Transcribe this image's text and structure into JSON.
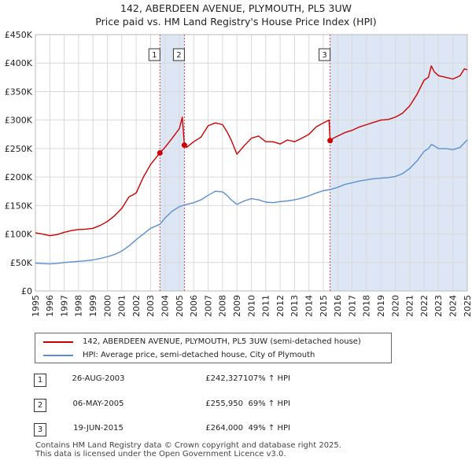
{
  "title_line1": "142, ABERDEEN AVENUE, PLYMOUTH, PL5 3UW",
  "title_line2": "Price paid vs. HM Land Registry's House Price Index (HPI)",
  "colors": {
    "property": "#cc0000",
    "hpi": "#5b8fd0",
    "shade": "#dde6f5",
    "vline": "#dd4444",
    "grid": "#d9d9d9"
  },
  "legend": {
    "property_label": "142, ABERDEEN AVENUE, PLYMOUTH, PL5 3UW (semi-detached house)",
    "hpi_label": "HPI: Average price, semi-detached house, City of Plymouth"
  },
  "transactions": [
    {
      "num": "1",
      "date": "26-AUG-2003",
      "price": "£242,327",
      "hpi": "107% ↑ HPI"
    },
    {
      "num": "2",
      "date": "06-MAY-2005",
      "price": "£255,950",
      "hpi": "69% ↑ HPI"
    },
    {
      "num": "3",
      "date": "19-JUN-2015",
      "price": "£264,000",
      "hpi": "49% ↑ HPI"
    }
  ],
  "footer_line1": "Contains HM Land Registry data © Crown copyright and database right 2025.",
  "footer_line2": "This data is licensed under the Open Government Licence v3.0.",
  "chart_data": {
    "type": "line",
    "title": "142, ABERDEEN AVENUE, PLYMOUTH, PL5 3UW",
    "xlim": [
      1995,
      2025
    ],
    "ylim": [
      0,
      450000
    ],
    "x_ticks": [
      "1995",
      "1996",
      "1997",
      "1998",
      "1999",
      "2000",
      "2001",
      "2002",
      "2003",
      "2004",
      "2005",
      "2006",
      "2007",
      "2008",
      "2009",
      "2010",
      "2011",
      "2012",
      "2013",
      "2014",
      "2015",
      "2016",
      "2017",
      "2018",
      "2019",
      "2020",
      "2021",
      "2022",
      "2023",
      "2024",
      "2025"
    ],
    "y_ticks": [
      {
        "value": 0,
        "label": "£0"
      },
      {
        "value": 50000,
        "label": "£50K"
      },
      {
        "value": 100000,
        "label": "£100K"
      },
      {
        "value": 150000,
        "label": "£150K"
      },
      {
        "value": 200000,
        "label": "£200K"
      },
      {
        "value": 250000,
        "label": "£250K"
      },
      {
        "value": 300000,
        "label": "£300K"
      },
      {
        "value": 350000,
        "label": "£350K"
      },
      {
        "value": 400000,
        "label": "£400K"
      },
      {
        "value": 450000,
        "label": "£450K"
      }
    ],
    "sale_markers": [
      {
        "label": "1",
        "x": 2003.65,
        "y": 242327
      },
      {
        "label": "2",
        "x": 2005.35,
        "y": 255950
      },
      {
        "label": "3",
        "x": 2015.47,
        "y": 264000
      }
    ],
    "shaded_ranges": [
      [
        2003.65,
        2005.35
      ],
      [
        2015.47,
        2025
      ]
    ],
    "series": [
      {
        "name": "142, ABERDEEN AVENUE, PLYMOUTH, PL5 3UW (semi-detached house)",
        "x": [
          1995,
          1995.5,
          1996,
          1996.5,
          1997,
          1997.5,
          1998,
          1998.5,
          1999,
          1999.5,
          2000,
          2000.5,
          2001,
          2001.5,
          2002,
          2002.5,
          2003,
          2003.65,
          2004,
          2004.5,
          2005,
          2005.2,
          2005.35,
          2005.5,
          2006,
          2006.5,
          2007,
          2007.5,
          2008,
          2008.3,
          2008.6,
          2009,
          2009.5,
          2010,
          2010.5,
          2011,
          2011.5,
          2012,
          2012.5,
          2013,
          2013.5,
          2014,
          2014.5,
          2015,
          2015.4,
          2015.47,
          2015.7,
          2016,
          2016.5,
          2017,
          2017.5,
          2018,
          2018.5,
          2019,
          2019.5,
          2020,
          2020.5,
          2021,
          2021.5,
          2022,
          2022.3,
          2022.5,
          2022.7,
          2023,
          2023.5,
          2024,
          2024.5,
          2024.8,
          2025
        ],
        "y": [
          102000,
          100000,
          97000,
          99000,
          103000,
          106000,
          108000,
          108500,
          110000,
          115000,
          122000,
          132000,
          145000,
          165000,
          172000,
          200000,
          222000,
          242327,
          252000,
          268000,
          285000,
          305000,
          255950,
          252000,
          262000,
          270000,
          290000,
          295000,
          292000,
          280000,
          265000,
          240000,
          255000,
          268000,
          272000,
          262000,
          262000,
          258000,
          265000,
          262000,
          268000,
          275000,
          288000,
          295000,
          300000,
          264000,
          268000,
          272000,
          278000,
          282000,
          288000,
          292000,
          296000,
          300000,
          301000,
          305000,
          312000,
          325000,
          345000,
          370000,
          375000,
          395000,
          385000,
          378000,
          375000,
          372000,
          378000,
          390000,
          388000
        ]
      },
      {
        "name": "HPI: Average price, semi-detached house, City of Plymouth",
        "x": [
          1995,
          1995.5,
          1996,
          1996.5,
          1997,
          1997.5,
          1998,
          1998.5,
          1999,
          1999.5,
          2000,
          2000.5,
          2001,
          2001.5,
          2002,
          2002.5,
          2003,
          2003.65,
          2004,
          2004.5,
          2005,
          2005.35,
          2005.5,
          2006,
          2006.5,
          2007,
          2007.5,
          2008,
          2008.3,
          2008.6,
          2009,
          2009.5,
          2010,
          2010.5,
          2011,
          2011.5,
          2012,
          2012.5,
          2013,
          2013.5,
          2014,
          2014.5,
          2015,
          2015.47,
          2016,
          2016.5,
          2017,
          2017.5,
          2018,
          2018.5,
          2019,
          2019.5,
          2020,
          2020.5,
          2021,
          2021.5,
          2022,
          2022.3,
          2022.5,
          2022.7,
          2023,
          2023.5,
          2024,
          2024.5,
          2024.8,
          2025
        ],
        "y": [
          49000,
          48000,
          47500,
          48500,
          50000,
          51000,
          52000,
          53000,
          54500,
          57000,
          60000,
          64000,
          70000,
          79000,
          90000,
          100000,
          110000,
          117000,
          128000,
          140000,
          148000,
          151000,
          152000,
          155000,
          160000,
          168000,
          175000,
          174000,
          168000,
          160000,
          152000,
          158000,
          162000,
          160000,
          156000,
          155000,
          157000,
          158000,
          160000,
          163000,
          167000,
          172000,
          176000,
          178000,
          182000,
          187000,
          190000,
          193000,
          195000,
          197000,
          198000,
          199000,
          201000,
          206000,
          215000,
          228000,
          245000,
          250000,
          257000,
          255000,
          250000,
          250000,
          248000,
          252000,
          260000,
          265000
        ]
      }
    ]
  }
}
